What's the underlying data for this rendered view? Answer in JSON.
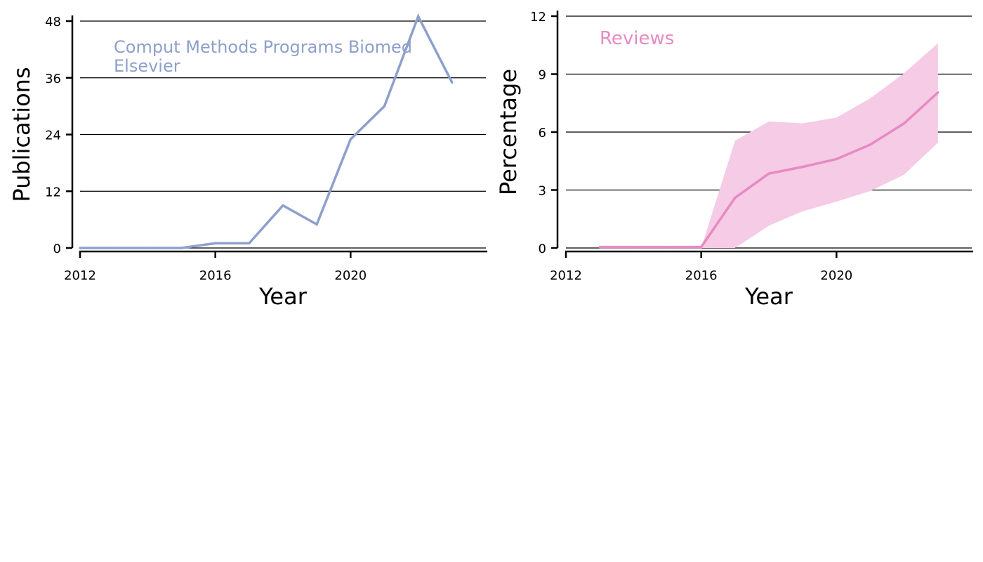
{
  "chart_data": [
    {
      "type": "line",
      "title": "",
      "xlabel": "Year",
      "ylabel": "Publications",
      "xlim": [
        2012,
        2024
      ],
      "ylim": [
        0,
        48
      ],
      "xticks": [
        "2012",
        "2016",
        "2020"
      ],
      "yticks": [
        "0",
        "12",
        "24",
        "36",
        "48"
      ],
      "grid": "horizontal",
      "annotation": [
        "Comput Methods Programs Biomed",
        "Elsevier"
      ],
      "color": "#8da0cb",
      "x": [
        2012,
        2013,
        2014,
        2015,
        2016,
        2017,
        2018,
        2019,
        2020,
        2021,
        2022,
        2023
      ],
      "series": [
        {
          "values": [
            0,
            0,
            0,
            0,
            1,
            1,
            9,
            5,
            23,
            30,
            49,
            35
          ]
        }
      ]
    },
    {
      "type": "area",
      "title": "",
      "xlabel": "Year",
      "ylabel": "Percentage",
      "xlim": [
        2012,
        2024
      ],
      "ylim": [
        0,
        12
      ],
      "xticks": [
        "2012",
        "2016",
        "2020"
      ],
      "yticks": [
        "0",
        "3",
        "6",
        "9",
        "12"
      ],
      "grid": "horizontal",
      "annotation": [
        "Reviews"
      ],
      "color": "#e78ac3",
      "band_color": "#f5cbe5",
      "x": [
        2013,
        2014,
        2015,
        2016,
        2017,
        2018,
        2019,
        2020,
        2021,
        2022,
        2023
      ],
      "series": [
        {
          "values": [
            0.05,
            0.05,
            0.05,
            0.05,
            2.6,
            3.85,
            4.2,
            4.6,
            5.35,
            6.45,
            8.05
          ]
        }
      ],
      "band_lower": [
        0,
        0,
        0,
        0,
        0,
        1.15,
        1.9,
        2.4,
        2.95,
        3.8,
        5.45
      ],
      "band_upper": [
        0,
        0,
        0,
        0,
        5.55,
        6.55,
        6.45,
        6.75,
        7.75,
        9.05,
        10.6
      ]
    }
  ]
}
